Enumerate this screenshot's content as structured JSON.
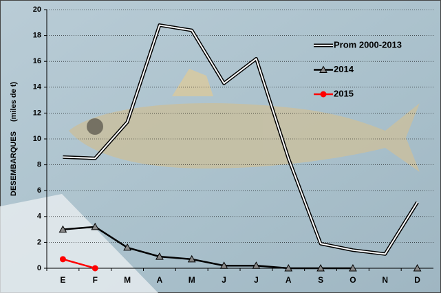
{
  "chart_data": {
    "type": "line",
    "y_label": "DESEMBARQUES",
    "y_unit": "(miles de t)",
    "categories": [
      "E",
      "F",
      "M",
      "A",
      "M",
      "J",
      "J",
      "A",
      "S",
      "O",
      "N",
      "D"
    ],
    "ylim": [
      0,
      20
    ],
    "yticks": [
      0,
      2,
      4,
      6,
      8,
      10,
      12,
      14,
      16,
      18,
      20
    ],
    "grid": true,
    "series": [
      {
        "name": "Prom 2000-2013",
        "color": "#ffffff",
        "marker": "none",
        "values": [
          8.6,
          8.5,
          11.3,
          18.8,
          18.4,
          14.3,
          16.2,
          8.5,
          1.9,
          1.4,
          1.1,
          5.1
        ]
      },
      {
        "name": "2014",
        "color": "#000000",
        "marker": "triangle",
        "values": [
          3.0,
          3.2,
          1.6,
          0.9,
          0.7,
          0.2,
          0.2,
          0,
          0,
          0,
          null,
          0
        ]
      },
      {
        "name": "2015",
        "color": "#ff0000",
        "marker": "circle",
        "values": [
          0.7,
          0,
          null,
          null,
          null,
          null,
          null,
          null,
          null,
          null,
          null,
          null
        ]
      }
    ]
  }
}
